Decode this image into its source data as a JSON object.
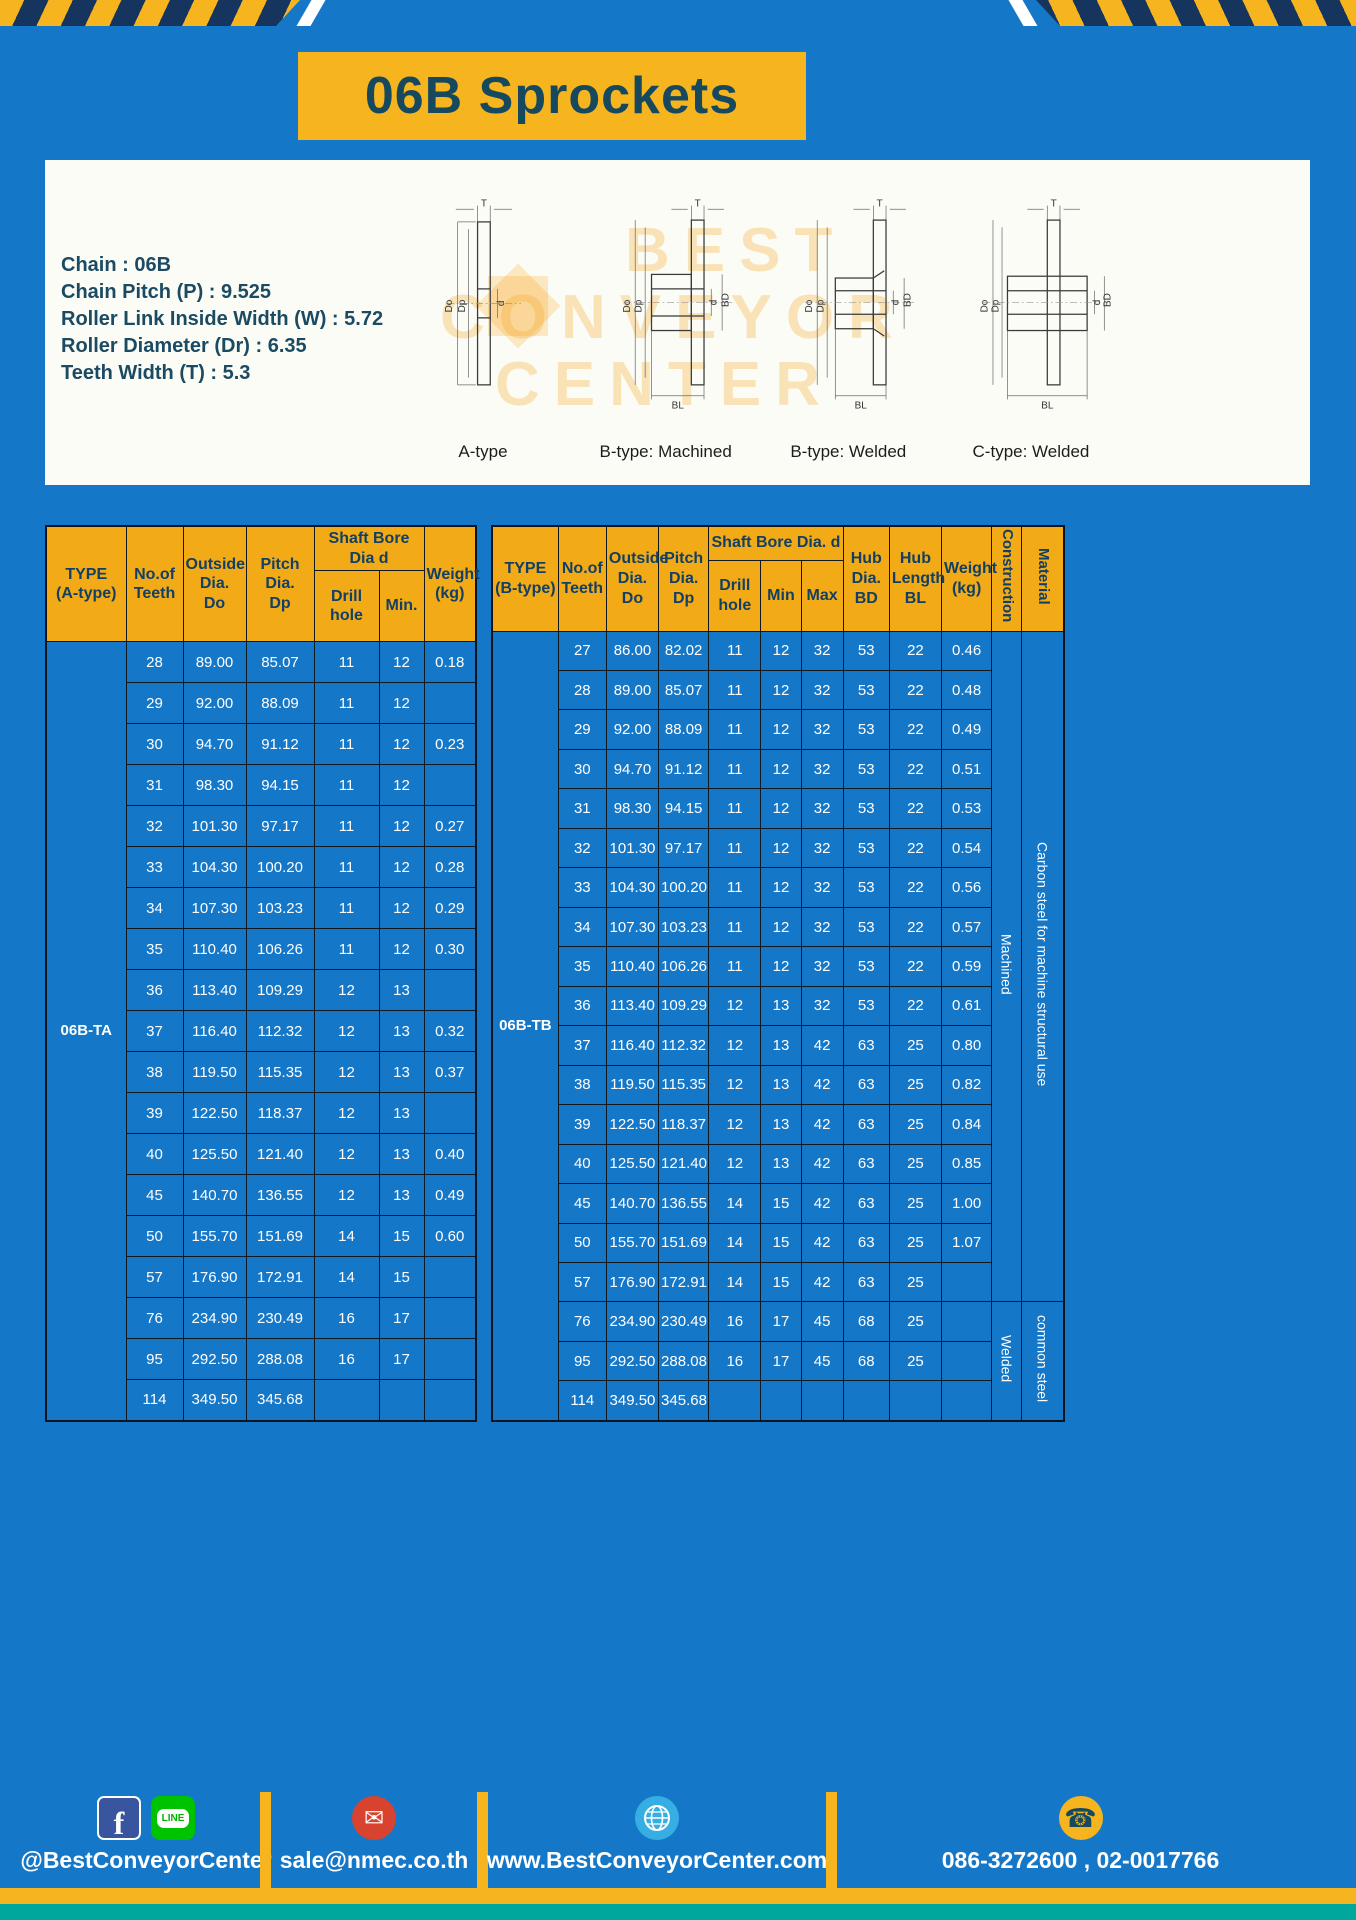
{
  "page": {
    "title": "06B Sprockets"
  },
  "colors": {
    "page_bg": "#1577c8",
    "accent_yellow": "#f6b41e",
    "hazard_navy": "#15355f",
    "title_text": "#17495e",
    "table_header_bg": "#f2ab16",
    "teal_bar": "#00a79b"
  },
  "specs": [
    "Chain : 06B",
    "Chain Pitch (P) : 9.525",
    "Roller Link Inside Width (W) : 5.72",
    "Roller Diameter (Dr) : 6.35",
    "Teeth Width (T) : 5.3"
  ],
  "watermark": {
    "line1": "BEST",
    "line2": "CONVEYOR",
    "line3": "CENTER"
  },
  "drawings": [
    {
      "caption": "A-type",
      "labels": {
        "t": "T",
        "do": "Do",
        "dp": "Dp",
        "d": "d"
      }
    },
    {
      "caption": "B-type: Machined",
      "labels": {
        "t": "T",
        "do": "Do",
        "dp": "Dp",
        "d": "d",
        "bd": "BD",
        "bl": "BL"
      }
    },
    {
      "caption": "B-type: Welded",
      "labels": {
        "t": "T",
        "do": "Do",
        "dp": "Dp",
        "d": "d",
        "bd": "BD",
        "bl": "BL"
      }
    },
    {
      "caption": "C-type: Welded",
      "labels": {
        "t": "T",
        "do": "Do",
        "dp": "Dp",
        "d": "d",
        "bd": "BD",
        "bl": "BL"
      }
    }
  ],
  "table_a": {
    "headers": {
      "type": "TYPE\n(A-type)",
      "teeth": "No.of\nTeeth",
      "outside": "Outside\nDia.\nDo",
      "pitch": "Pitch Dia.\nDp",
      "bore_group": "Shaft Bore Dia d",
      "drill": "Drill hole",
      "min": "Min.",
      "weight": "Weight\n(kg)"
    },
    "type_value": "06B-TA",
    "rows": [
      [
        "28",
        "89.00",
        "85.07",
        "11",
        "12",
        "0.18"
      ],
      [
        "29",
        "92.00",
        "88.09",
        "11",
        "12",
        ""
      ],
      [
        "30",
        "94.70",
        "91.12",
        "11",
        "12",
        "0.23"
      ],
      [
        "31",
        "98.30",
        "94.15",
        "11",
        "12",
        ""
      ],
      [
        "32",
        "101.30",
        "97.17",
        "11",
        "12",
        "0.27"
      ],
      [
        "33",
        "104.30",
        "100.20",
        "11",
        "12",
        "0.28"
      ],
      [
        "34",
        "107.30",
        "103.23",
        "11",
        "12",
        "0.29"
      ],
      [
        "35",
        "110.40",
        "106.26",
        "11",
        "12",
        "0.30"
      ],
      [
        "36",
        "113.40",
        "109.29",
        "12",
        "13",
        ""
      ],
      [
        "37",
        "116.40",
        "112.32",
        "12",
        "13",
        "0.32"
      ],
      [
        "38",
        "119.50",
        "115.35",
        "12",
        "13",
        "0.37"
      ],
      [
        "39",
        "122.50",
        "118.37",
        "12",
        "13",
        ""
      ],
      [
        "40",
        "125.50",
        "121.40",
        "12",
        "13",
        "0.40"
      ],
      [
        "45",
        "140.70",
        "136.55",
        "12",
        "13",
        "0.49"
      ],
      [
        "50",
        "155.70",
        "151.69",
        "14",
        "15",
        "0.60"
      ],
      [
        "57",
        "176.90",
        "172.91",
        "14",
        "15",
        ""
      ],
      [
        "76",
        "234.90",
        "230.49",
        "16",
        "17",
        ""
      ],
      [
        "95",
        "292.50",
        "288.08",
        "16",
        "17",
        ""
      ],
      [
        "114",
        "349.50",
        "345.68",
        "",
        "",
        ""
      ]
    ]
  },
  "table_b": {
    "headers": {
      "type": "TYPE\n(B-type)",
      "teeth": "No.of\nTeeth",
      "outside": "Outside\nDia.\nDo",
      "pitch": "Pitch\nDia.\nDp",
      "bore_group": "Shaft Bore Dia. d",
      "drill": "Drill hole",
      "min": "Min",
      "max": "Max",
      "hub_dia": "Hub\nDia.\nBD",
      "hub_len": "Hub\nLength\nBL",
      "weight": "Weight\n(kg)",
      "construction": "Construction",
      "material": "Material"
    },
    "type_value": "06B-TB",
    "rows": [
      [
        "27",
        "86.00",
        "82.02",
        "11",
        "12",
        "32",
        "53",
        "22",
        "0.46"
      ],
      [
        "28",
        "89.00",
        "85.07",
        "11",
        "12",
        "32",
        "53",
        "22",
        "0.48"
      ],
      [
        "29",
        "92.00",
        "88.09",
        "11",
        "12",
        "32",
        "53",
        "22",
        "0.49"
      ],
      [
        "30",
        "94.70",
        "91.12",
        "11",
        "12",
        "32",
        "53",
        "22",
        "0.51"
      ],
      [
        "31",
        "98.30",
        "94.15",
        "11",
        "12",
        "32",
        "53",
        "22",
        "0.53"
      ],
      [
        "32",
        "101.30",
        "97.17",
        "11",
        "12",
        "32",
        "53",
        "22",
        "0.54"
      ],
      [
        "33",
        "104.30",
        "100.20",
        "11",
        "12",
        "32",
        "53",
        "22",
        "0.56"
      ],
      [
        "34",
        "107.30",
        "103.23",
        "11",
        "12",
        "32",
        "53",
        "22",
        "0.57"
      ],
      [
        "35",
        "110.40",
        "106.26",
        "11",
        "12",
        "32",
        "53",
        "22",
        "0.59"
      ],
      [
        "36",
        "113.40",
        "109.29",
        "12",
        "13",
        "32",
        "53",
        "22",
        "0.61"
      ],
      [
        "37",
        "116.40",
        "112.32",
        "12",
        "13",
        "42",
        "63",
        "25",
        "0.80"
      ],
      [
        "38",
        "119.50",
        "115.35",
        "12",
        "13",
        "42",
        "63",
        "25",
        "0.82"
      ],
      [
        "39",
        "122.50",
        "118.37",
        "12",
        "13",
        "42",
        "63",
        "25",
        "0.84"
      ],
      [
        "40",
        "125.50",
        "121.40",
        "12",
        "13",
        "42",
        "63",
        "25",
        "0.85"
      ],
      [
        "45",
        "140.70",
        "136.55",
        "14",
        "15",
        "42",
        "63",
        "25",
        "1.00"
      ],
      [
        "50",
        "155.70",
        "151.69",
        "14",
        "15",
        "42",
        "63",
        "25",
        "1.07"
      ],
      [
        "57",
        "176.90",
        "172.91",
        "14",
        "15",
        "42",
        "63",
        "25",
        ""
      ],
      [
        "76",
        "234.90",
        "230.49",
        "16",
        "17",
        "45",
        "68",
        "25",
        ""
      ],
      [
        "95",
        "292.50",
        "288.08",
        "16",
        "17",
        "45",
        "68",
        "25",
        ""
      ],
      [
        "114",
        "349.50",
        "345.68",
        "",
        "",
        "",
        "",
        "",
        ""
      ]
    ],
    "construction_groups": [
      {
        "label": "Machined",
        "span": 17
      },
      {
        "label": "Welded",
        "span": 3
      }
    ],
    "material_groups": [
      {
        "label": "Carbon steel for machine structural use",
        "span": 17
      },
      {
        "label": "common steel",
        "span": 3
      }
    ]
  },
  "footer": {
    "facebook_handle": "@BestConveyorCenter",
    "email": "sale@nmec.co.th",
    "website": "www.BestConveyorCenter.com",
    "phone": "086-3272600 , 02-0017766",
    "icons": {
      "facebook_glyph": "f",
      "line_label": "LINE",
      "email_glyph": "✉",
      "phone_glyph": "☎"
    }
  }
}
